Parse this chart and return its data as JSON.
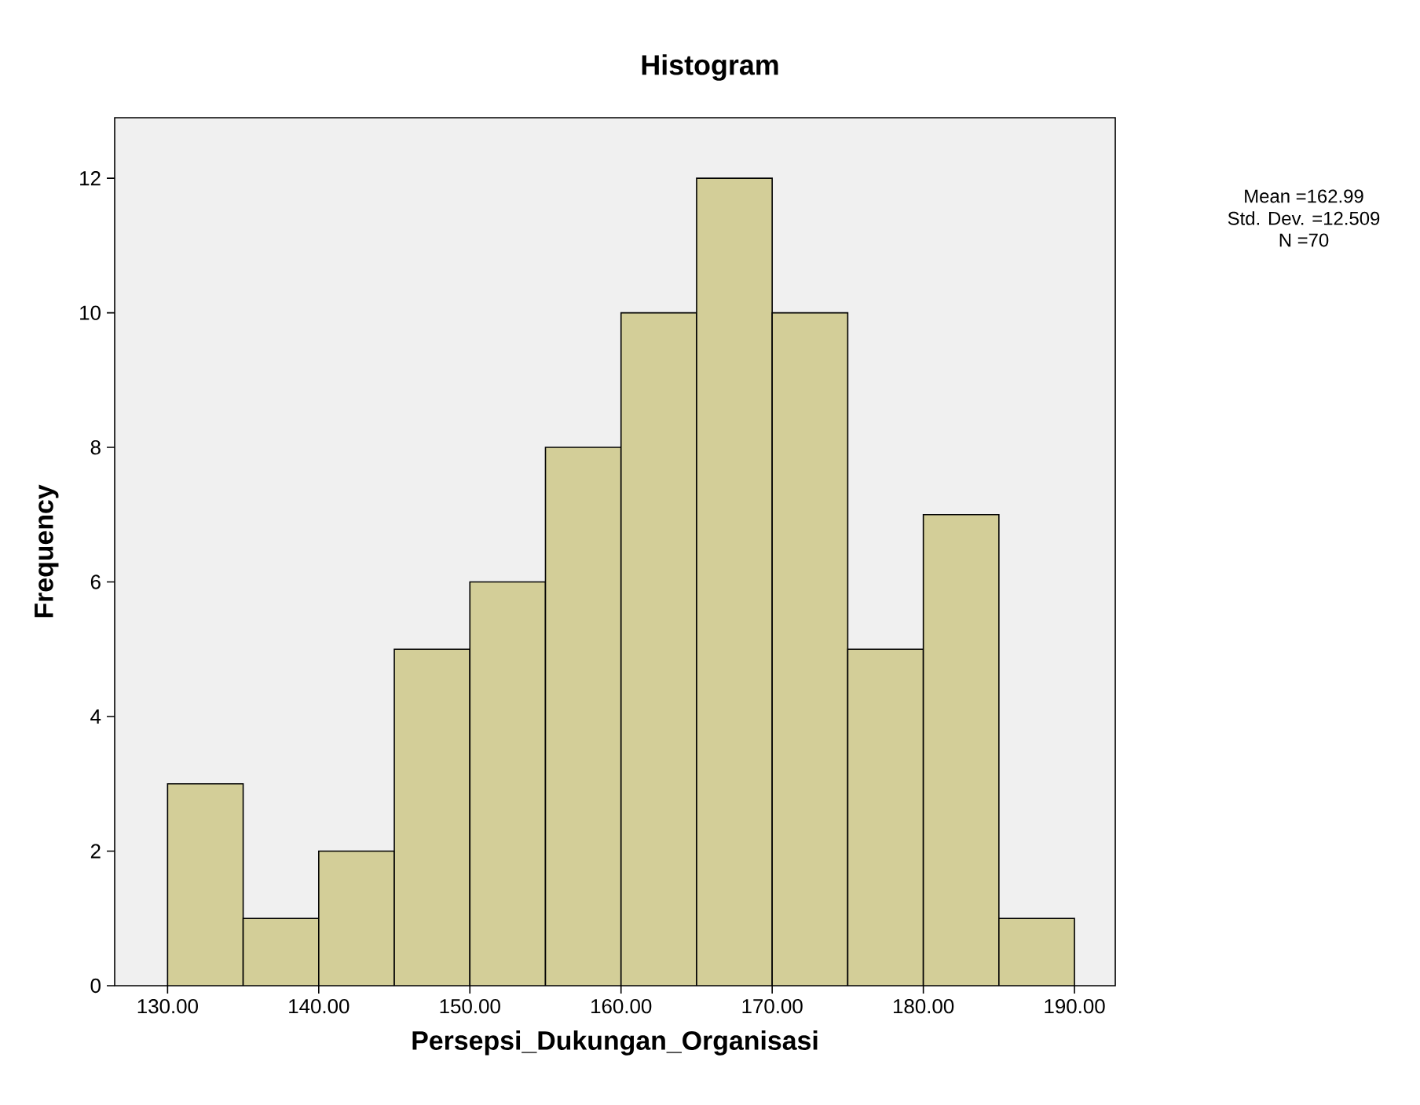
{
  "chart_data": {
    "type": "histogram",
    "title": "Histogram",
    "xlabel": "Persepsi_Dukungan_Organisasi",
    "ylabel": "Frequency",
    "bins": [
      130,
      135,
      140,
      145,
      150,
      155,
      160,
      165,
      170,
      175,
      180,
      185,
      190
    ],
    "values": [
      3,
      1,
      2,
      5,
      6,
      8,
      10,
      12,
      10,
      5,
      7,
      1
    ],
    "color": "#d3ce98",
    "xlim": [
      126.5,
      192.7
    ],
    "ylim": [
      0,
      12.9
    ],
    "xticks": [
      {
        "value": 130,
        "label": "130.00"
      },
      {
        "value": 140,
        "label": "140.00"
      },
      {
        "value": 150,
        "label": "150.00"
      },
      {
        "value": 160,
        "label": "160.00"
      },
      {
        "value": 170,
        "label": "170.00"
      },
      {
        "value": 180,
        "label": "180.00"
      },
      {
        "value": 190,
        "label": "190.00"
      }
    ],
    "yticks": [
      0,
      2,
      4,
      6,
      8,
      10,
      12
    ],
    "annotations": [
      "Mean =162.99",
      "Std. Dev. =12.509",
      "N =70"
    ]
  }
}
